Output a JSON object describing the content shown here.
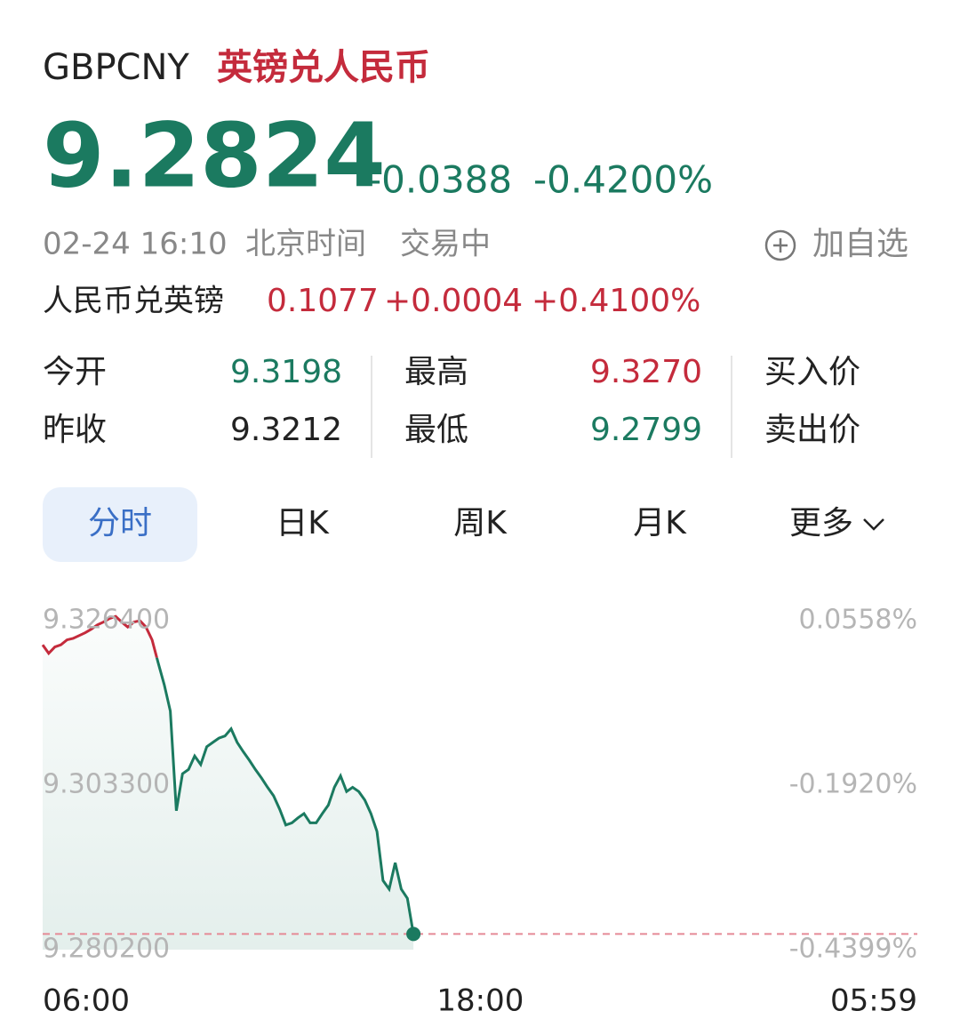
{
  "header": {
    "symbol": "GBPCNY",
    "name": "英镑兑人民币",
    "price": 9.2824,
    "change": "-0.0388",
    "change_pct": "-0.4200%"
  },
  "meta": {
    "time": "02-24 16:10",
    "zone": "北京时间",
    "status": "交易中",
    "watchlist": "加自选"
  },
  "inverse": {
    "label": "人民币兑英镑",
    "price": "0.1077",
    "change": "+0.0004",
    "change_pct": "+0.4100%"
  },
  "stats": [
    {
      "label": "今开",
      "value": "9.3198"
    },
    {
      "label": "昨收",
      "value": "9.3212"
    },
    {
      "label": "最高",
      "value": "9.3270"
    },
    {
      "label": "最低",
      "value": "9.2799"
    },
    {
      "label": "买入价"
    },
    {
      "label": "卖出价"
    }
  ],
  "tabs": [
    "分时",
    "日K",
    "周K",
    "月K",
    "更多"
  ],
  "chart_data": {
    "type": "line",
    "x": [
      "06:00",
      "06:10",
      "06:20",
      "06:30",
      "06:40",
      "06:50",
      "07:00",
      "07:10",
      "07:20",
      "07:30",
      "07:40",
      "07:50",
      "08:00",
      "08:10",
      "08:20",
      "08:30",
      "08:40",
      "08:50",
      "09:00",
      "09:10",
      "09:20",
      "09:30",
      "09:40",
      "09:50",
      "10:00",
      "10:10",
      "10:20",
      "10:30",
      "10:40",
      "10:50",
      "11:00",
      "11:10",
      "11:20",
      "11:30",
      "11:40",
      "11:50",
      "12:00",
      "12:10",
      "12:20",
      "12:30",
      "12:40",
      "12:50",
      "13:00",
      "13:10",
      "13:20",
      "13:30",
      "13:40",
      "13:50",
      "14:00",
      "14:10",
      "14:20",
      "14:30",
      "14:40",
      "14:50",
      "15:00",
      "15:10",
      "15:20",
      "15:30",
      "15:40",
      "15:50",
      "16:00",
      "16:10"
    ],
    "values": [
      9.323,
      9.3218,
      9.3227,
      9.323,
      9.3237,
      9.3239,
      9.3243,
      9.3247,
      9.3252,
      9.3258,
      9.3262,
      9.3267,
      9.327,
      9.3262,
      9.3255,
      9.3262,
      9.3264,
      9.3255,
      9.3237,
      9.3205,
      9.3174,
      9.3137,
      9.2997,
      9.3049,
      9.3055,
      9.3074,
      9.3062,
      9.3087,
      9.3093,
      9.3099,
      9.3102,
      9.3112,
      9.3093,
      9.308,
      9.3068,
      9.3055,
      9.3043,
      9.303,
      9.3018,
      9.2999,
      9.2977,
      9.298,
      9.2987,
      9.2993,
      9.298,
      9.298,
      9.2993,
      9.3005,
      9.303,
      9.3046,
      9.3024,
      9.303,
      9.3024,
      9.3012,
      9.2993,
      9.2968,
      9.2899,
      9.2887,
      9.2924,
      9.2887,
      9.2874,
      9.2824
    ],
    "up_color": "#c42b3c",
    "down_color": "#1b7a60",
    "xlim": [
      "06:00",
      "05:59"
    ],
    "xticks": [
      "06:00",
      "18:00",
      "05:59"
    ],
    "ylim": [
      9.2802,
      9.3264
    ],
    "yticks": [
      {
        "value": 9.3264,
        "label": "9.326400"
      },
      {
        "value": 9.3033,
        "label": "9.303300"
      },
      {
        "value": 9.2802,
        "label": "9.280200"
      }
    ],
    "y2lim": [
      -0.4399,
      0.0558
    ],
    "y2ticks": [
      {
        "value": 0.0558,
        "label": "0.0558%"
      },
      {
        "value": -0.192,
        "label": "-0.1920%"
      },
      {
        "value": -0.4399,
        "label": "-0.4399%"
      }
    ]
  }
}
